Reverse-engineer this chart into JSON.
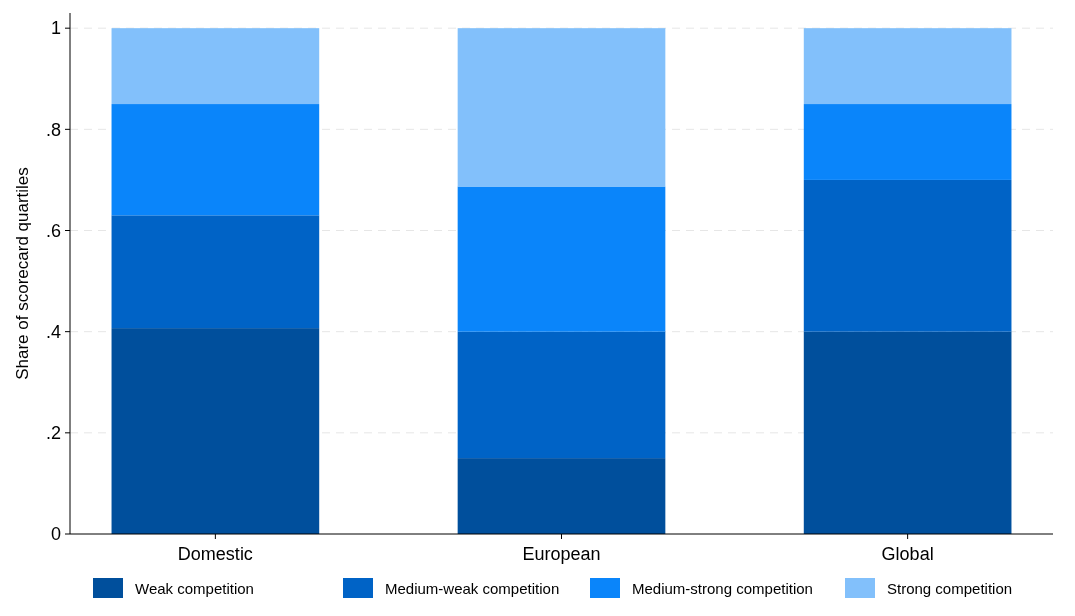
{
  "chart_data": {
    "type": "bar",
    "stacked": true,
    "ylabel": "Share of scorecard quartiles",
    "categories": [
      "Domestic",
      "European",
      "Global"
    ],
    "series": [
      {
        "name": "Weak competition",
        "color": "#004f9c",
        "values": [
          0.407,
          0.15,
          0.4
        ]
      },
      {
        "name": "Medium-weak competition",
        "color": "#0063c6",
        "values": [
          0.223,
          0.25,
          0.3
        ]
      },
      {
        "name": "Medium-strong competition",
        "color": "#0a85fa",
        "values": [
          0.22,
          0.287,
          0.15
        ]
      },
      {
        "name": "Strong competition",
        "color": "#82c0fb",
        "values": [
          0.15,
          0.313,
          0.15
        ]
      }
    ],
    "ylim": [
      0,
      1.03
    ],
    "yticks": [
      {
        "value": 0,
        "label": "0"
      },
      {
        "value": 0.2,
        "label": ".2"
      },
      {
        "value": 0.4,
        "label": ".4"
      },
      {
        "value": 0.6,
        "label": ".6"
      },
      {
        "value": 0.8,
        "label": ".8"
      },
      {
        "value": 1,
        "label": "1"
      }
    ],
    "grid": "y",
    "legend": "bottom"
  }
}
